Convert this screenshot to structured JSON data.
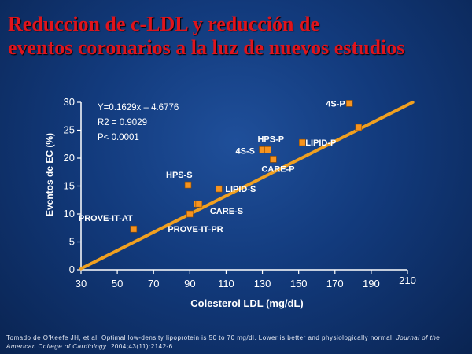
{
  "title": {
    "line1": "Reduccion de c-LDL y reducción de",
    "line2": "eventos coronarios a la luz de nuevos estudios"
  },
  "colors": {
    "title": "#e0141c",
    "trend_line": "#f0a020",
    "point": "#f7931e",
    "text": "#ffffff",
    "background": "#123a7c"
  },
  "chart_data": {
    "type": "scatter",
    "xlabel": "Colesterol LDL (mg/dL)",
    "ylabel": "Eventos de EC (%)",
    "xlim": [
      30,
      210
    ],
    "ylim": [
      0,
      30
    ],
    "xticks": [
      "30",
      "50",
      "70",
      "90",
      "110",
      "130",
      "150",
      "170",
      "190",
      "210"
    ],
    "yticks": [
      "0",
      "5",
      "10",
      "15",
      "20",
      "25",
      "30"
    ],
    "grid": false,
    "legend": "none",
    "equation_lines": [
      "Y=0.1629x – 4.6776",
      "R2 = 0.9029",
      "P< 0.0001"
    ],
    "trendline": {
      "slope": 0.1629,
      "intercept": -4.6776
    },
    "points": [
      {
        "label": "PROVE-IT-AT",
        "x": 59,
        "y": 7.3
      },
      {
        "label": "PROVE-IT-PR",
        "x": 90,
        "y": 10.0
      },
      {
        "label": "",
        "x": 94,
        "y": 11.8
      },
      {
        "label": "HPS-S",
        "x": 89,
        "y": 15.2
      },
      {
        "label": "LIPID-S",
        "x": 106,
        "y": 14.5
      },
      {
        "label": "CARE-S",
        "x": 95,
        "y": 11.8
      },
      {
        "label": "4S-S",
        "x": 130,
        "y": 21.5
      },
      {
        "label": "HPS-P",
        "x": 133,
        "y": 21.5
      },
      {
        "label": "CARE-P",
        "x": 136,
        "y": 19.8
      },
      {
        "label": "LIPID-P",
        "x": 152,
        "y": 22.8
      },
      {
        "label": "4S-P",
        "x": 178,
        "y": 29.8
      },
      {
        "label": "",
        "x": 183,
        "y": 25.5
      }
    ]
  },
  "footnote": {
    "text": "Tomado de O'Keefe JH, et al. Optimal low-density lipoprotein is 50 to 70 mg/dl. Lower is better and physiologically normal. ",
    "journal": "Journal of the American College of Cardiology",
    "citation": ". 2004;43(11):2142-6."
  }
}
